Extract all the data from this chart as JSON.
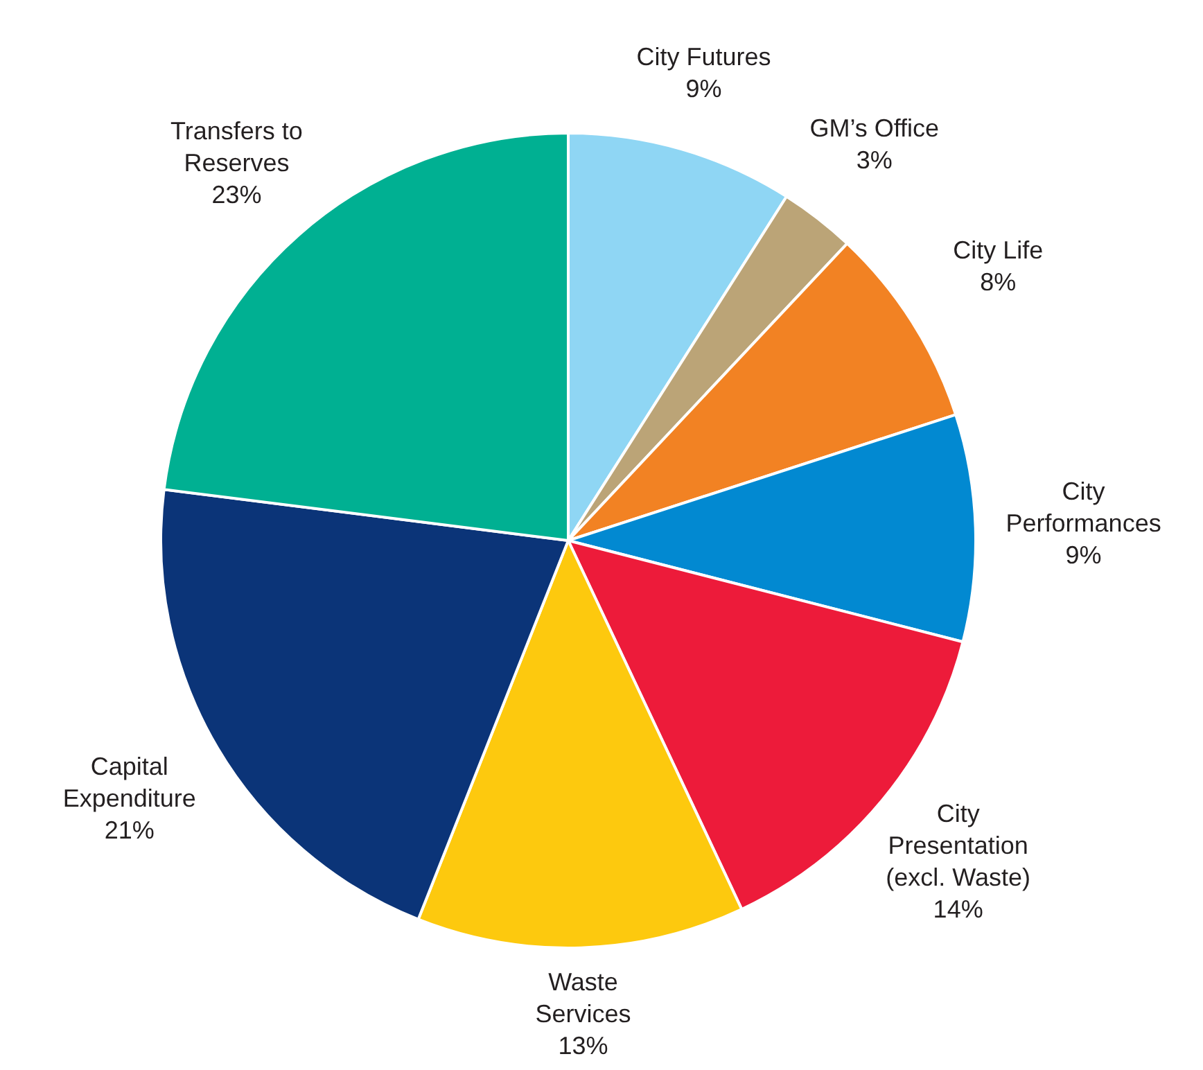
{
  "chart_data": {
    "type": "pie",
    "categories": [
      "City Futures",
      "GM’s Office",
      "City Life",
      "City Performances",
      "City Presentation (excl. Waste)",
      "Waste Services",
      "Capital Expenditure",
      "Transfers to Reserves"
    ],
    "values": [
      9,
      3,
      8,
      9,
      14,
      13,
      21,
      23
    ],
    "value_labels": [
      "9%",
      "3%",
      "8%",
      "9%",
      "14%",
      "13%",
      "21%",
      "23%"
    ],
    "colors": [
      "#8fd6f4",
      "#bba477",
      "#f28223",
      "#0289d1",
      "#ed1b3a",
      "#fdc90e",
      "#0b3478",
      "#00b092"
    ],
    "legend": false
  }
}
